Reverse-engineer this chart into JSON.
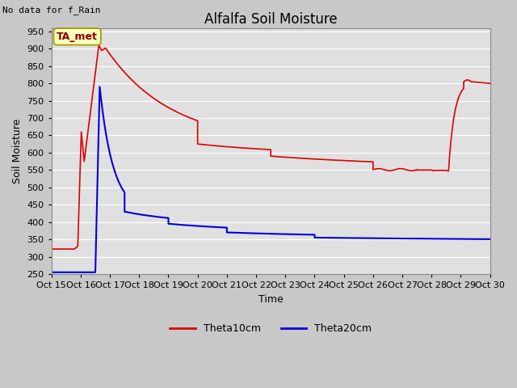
{
  "title": "Alfalfa Soil Moisture",
  "ylabel": "Soil Moisture",
  "xlabel": "Time",
  "ylim": [
    250,
    960
  ],
  "xlim": [
    0,
    15
  ],
  "yticks": [
    250,
    300,
    350,
    400,
    450,
    500,
    550,
    600,
    650,
    700,
    750,
    800,
    850,
    900,
    950
  ],
  "xtick_labels": [
    "Oct 15",
    "Oct 16",
    "Oct 17",
    "Oct 18",
    "Oct 19",
    "Oct 20",
    "Oct 21",
    "Oct 22",
    "Oct 23",
    "Oct 24",
    "Oct 25",
    "Oct 26",
    "Oct 27",
    "Oct 28",
    "Oct 29",
    "Oct 30"
  ],
  "no_data_text": "No data for f_Rain",
  "annotation_text": "TA_met",
  "fig_bg_color": "#c8c8c8",
  "plot_bg_color": "#e0e0e0",
  "grid_color": "#ffffff",
  "line1_color": "#dd0000",
  "line2_color": "#0000dd",
  "legend_label1": "Theta10cm",
  "legend_label2": "Theta20cm",
  "title_fontsize": 12,
  "axis_label_fontsize": 9,
  "tick_fontsize": 8
}
